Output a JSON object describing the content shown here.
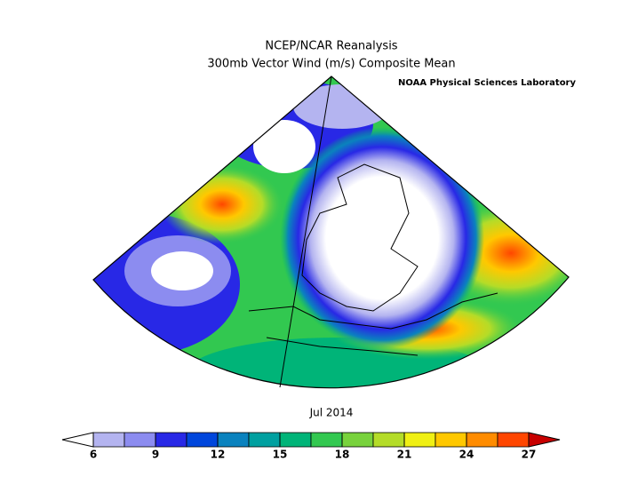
{
  "header": {
    "title": "NCEP/NCAR Reanalysis",
    "subtitle": "300mb Vector Wind (m/s) Composite Mean",
    "credit": "NOAA Physical Sciences Laboratory"
  },
  "map": {
    "period": "Jul 2014"
  },
  "colorbar": {
    "lim": [
      6,
      27
    ],
    "ticks": [
      6,
      9,
      12,
      15,
      18,
      21,
      24,
      27
    ],
    "under_color": "#ffffff",
    "over_color": "#c80000",
    "colors": [
      "#b4b4f0",
      "#8c8cf0",
      "#2828e6",
      "#0046dc",
      "#0a82be",
      "#00a0a0",
      "#00b478",
      "#32c850",
      "#78d23c",
      "#b4dc28",
      "#f0f014",
      "#ffc800",
      "#ff8c00",
      "#ff4600"
    ]
  }
}
